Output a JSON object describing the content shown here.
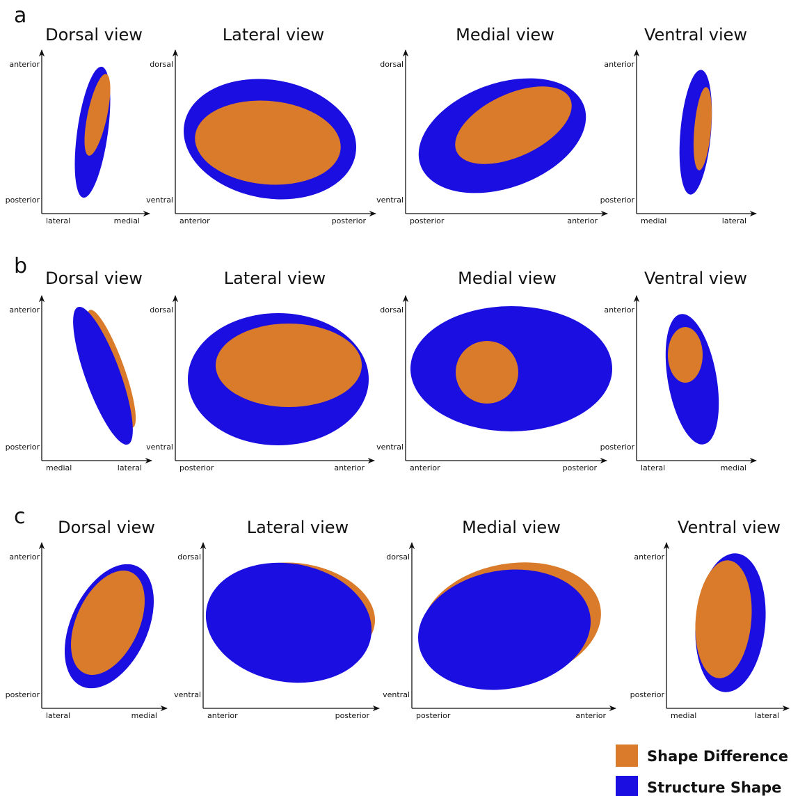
{
  "panels": [
    {
      "label": "a",
      "views": [
        {
          "title": "Dorsal view",
          "y_top": "anterior",
          "y_bottom": "posterior",
          "x_left": "lateral",
          "x_right": "medial"
        },
        {
          "title": "Lateral view",
          "y_top": "dorsal",
          "y_bottom": "ventral",
          "x_left": "anterior",
          "x_right": "posterior"
        },
        {
          "title": "Medial view",
          "y_top": "dorsal",
          "y_bottom": "ventral",
          "x_left": "posterior",
          "x_right": "anterior"
        },
        {
          "title": "Ventral view",
          "y_top": "anterior",
          "y_bottom": "posterior",
          "x_left": "medial",
          "x_right": "lateral"
        }
      ]
    },
    {
      "label": "b",
      "views": [
        {
          "title": "Dorsal view",
          "y_top": "anterior",
          "y_bottom": "posterior",
          "x_left": "medial",
          "x_right": "lateral"
        },
        {
          "title": "Lateral view",
          "y_top": "dorsal",
          "y_bottom": "ventral",
          "x_left": "posterior",
          "x_right": "anterior"
        },
        {
          "title": "Medial view",
          "y_top": "dorsal",
          "y_bottom": "ventral",
          "x_left": "anterior",
          "x_right": "posterior"
        },
        {
          "title": "Ventral view",
          "y_top": "anterior",
          "y_bottom": "posterior",
          "x_left": "lateral",
          "x_right": "medial"
        }
      ]
    },
    {
      "label": "c",
      "views": [
        {
          "title": "Dorsal view",
          "y_top": "anterior",
          "y_bottom": "posterior",
          "x_left": "lateral",
          "x_right": "medial"
        },
        {
          "title": "Lateral view",
          "y_top": "dorsal",
          "y_bottom": "ventral",
          "x_left": "anterior",
          "x_right": "posterior"
        },
        {
          "title": "Medial view",
          "y_top": "dorsal",
          "y_bottom": "ventral",
          "x_left": "posterior",
          "x_right": "anterior"
        },
        {
          "title": "Ventral view",
          "y_top": "anterior",
          "y_bottom": "posterior",
          "x_left": "medial",
          "x_right": "lateral"
        }
      ]
    }
  ],
  "legend": [
    {
      "label": "Shape Difference",
      "color": "#d97b2a"
    },
    {
      "label": "Structure Shape",
      "color": "#1a0ee0"
    }
  ]
}
